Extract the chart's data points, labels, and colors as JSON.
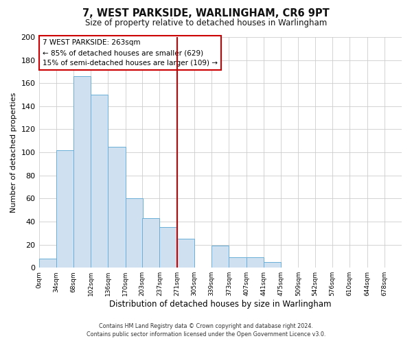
{
  "title": "7, WEST PARKSIDE, WARLINGHAM, CR6 9PT",
  "subtitle": "Size of property relative to detached houses in Warlingham",
  "xlabel": "Distribution of detached houses by size in Warlingham",
  "ylabel": "Number of detached properties",
  "bin_labels": [
    "0sqm",
    "34sqm",
    "68sqm",
    "102sqm",
    "136sqm",
    "170sqm",
    "203sqm",
    "237sqm",
    "271sqm",
    "305sqm",
    "339sqm",
    "373sqm",
    "407sqm",
    "441sqm",
    "475sqm",
    "509sqm",
    "542sqm",
    "576sqm",
    "610sqm",
    "644sqm",
    "678sqm"
  ],
  "bin_edges": [
    0,
    34,
    68,
    102,
    136,
    170,
    203,
    237,
    271,
    305,
    339,
    373,
    407,
    441,
    475,
    509,
    542,
    576,
    610,
    644,
    678
  ],
  "bar_heights": [
    8,
    102,
    166,
    150,
    105,
    60,
    43,
    35,
    25,
    0,
    19,
    9,
    9,
    5,
    0,
    0,
    0,
    0,
    0,
    0
  ],
  "bar_color": "#cfe0f0",
  "bar_edgecolor": "#6aaed6",
  "vline_x": 271,
  "vline_color": "#cc0000",
  "ylim": [
    0,
    200
  ],
  "yticks": [
    0,
    20,
    40,
    60,
    80,
    100,
    120,
    140,
    160,
    180,
    200
  ],
  "annotation_title": "7 WEST PARKSIDE: 263sqm",
  "annotation_line1": "← 85% of detached houses are smaller (629)",
  "annotation_line2": "15% of semi-detached houses are larger (109) →",
  "annotation_box_facecolor": "#ffffff",
  "annotation_box_edgecolor": "#cc0000",
  "footer_line1": "Contains HM Land Registry data © Crown copyright and database right 2024.",
  "footer_line2": "Contains public sector information licensed under the Open Government Licence v3.0.",
  "background_color": "#ffffff",
  "plot_background": "#ffffff",
  "grid_color": "#cccccc"
}
